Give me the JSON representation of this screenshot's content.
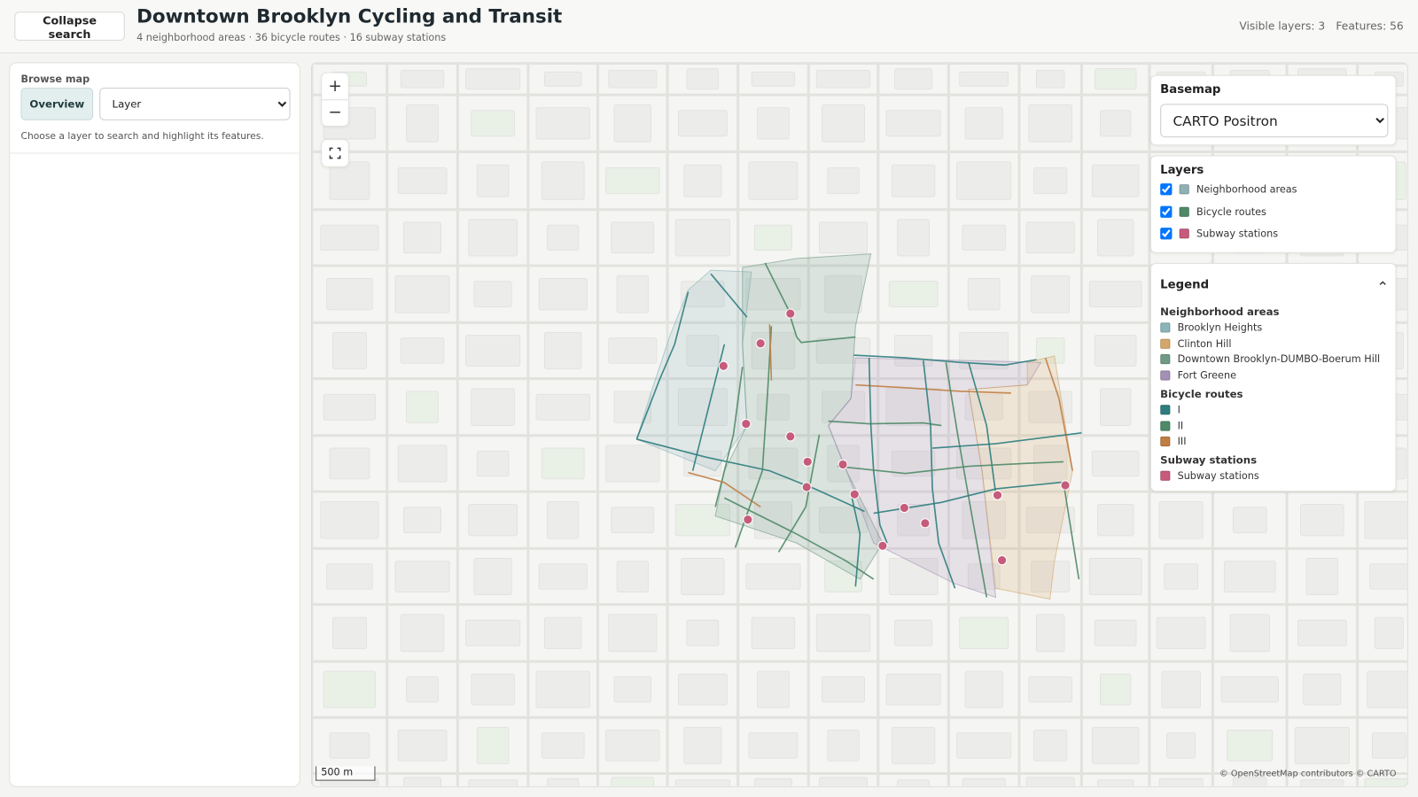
{
  "header": {
    "collapse_button": "Collapse search",
    "title": "Downtown Brooklyn Cycling and Transit",
    "subtitle": "4 neighborhood areas · 36 bicycle routes · 16 subway stations",
    "visible_layers": "Visible layers: 3",
    "features": "Features: 56"
  },
  "sidebar": {
    "heading": "Browse map",
    "tab": "Overview",
    "layer_select": "Layer",
    "hint": "Choose a layer to search and highlight its features."
  },
  "map": {
    "zoom_in": "+",
    "zoom_out": "−",
    "scale": "500 m",
    "attribution": "© OpenStreetMap contributors © CARTO"
  },
  "basemap": {
    "heading": "Basemap",
    "selected": "CARTO Positron"
  },
  "layers": {
    "heading": "Layers",
    "items": [
      {
        "label": "Neighborhood areas",
        "color": "#8fb1b3"
      },
      {
        "label": "Bicycle routes",
        "color": "#4e8a67"
      },
      {
        "label": "Subway stations",
        "color": "#c65b7c"
      }
    ]
  },
  "legend": {
    "heading": "Legend",
    "groups": [
      {
        "title": "Neighborhood areas",
        "items": [
          {
            "label": "Brooklyn Heights",
            "color": "#8ab4b8"
          },
          {
            "label": "Clinton Hill",
            "color": "#d4a66a"
          },
          {
            "label": "Downtown Brooklyn-DUMBO-Boerum Hill",
            "color": "#6f9a86"
          },
          {
            "label": "Fort Greene",
            "color": "#a48fb5"
          }
        ]
      },
      {
        "title": "Bicycle routes",
        "items": [
          {
            "label": "I",
            "color": "#2e7d7e"
          },
          {
            "label": "II",
            "color": "#4e8a67"
          },
          {
            "label": "III",
            "color": "#c07e45"
          }
        ]
      },
      {
        "title": "Subway stations",
        "items": [
          {
            "label": "Subway stations",
            "color": "#c65b7c"
          }
        ]
      }
    ]
  }
}
